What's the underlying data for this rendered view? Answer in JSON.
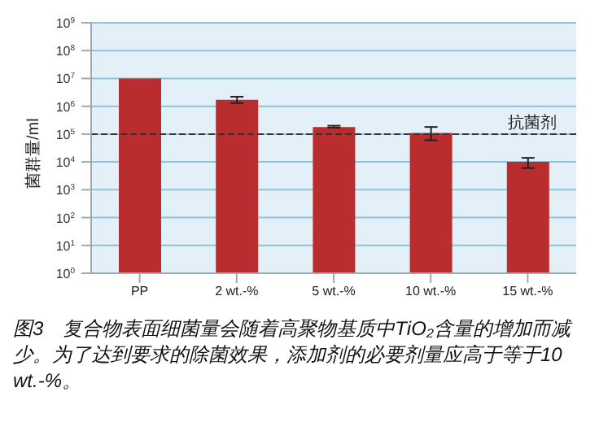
{
  "chart_data": {
    "type": "bar",
    "ylabel": "菌群量/ml",
    "categories": [
      "PP",
      "2 wt.-%",
      "5 wt.-%",
      "10 wt.-%",
      "15 wt.-%"
    ],
    "values": [
      10000000,
      1700000,
      180000,
      110000,
      10000
    ],
    "errors": [
      null,
      [
        1300000,
        2200000
      ],
      [
        170000,
        200000
      ],
      [
        60000,
        180000
      ],
      [
        6000,
        14000
      ]
    ],
    "color": "#b92d2f",
    "log": true,
    "ylim": [
      1,
      1000000000
    ],
    "yticks": [
      {
        "value": 1,
        "label": "10$^{0}$"
      },
      {
        "value": 10,
        "label": "10$^{1}$"
      },
      {
        "value": 100,
        "label": "10$^{2}$"
      },
      {
        "value": 1000,
        "label": "10$^{3}$"
      },
      {
        "value": 10000,
        "label": "10$^{4}$"
      },
      {
        "value": 100000,
        "label": "10$^{5}$"
      },
      {
        "value": 1000000,
        "label": "10$^{6}$"
      },
      {
        "value": 10000000,
        "label": "10$^{7}$"
      },
      {
        "value": 100000000,
        "label": "10$^{8}$"
      },
      {
        "value": 1000000000,
        "label": "10$^{9}$"
      }
    ],
    "grid": "y",
    "ref_lines": [
      {
        "axis": "y",
        "value": 100000,
        "label": "抗菌剂",
        "color": "#333333",
        "line_style": "dashed"
      }
    ],
    "annotations": [
      "图3　复合物表面细菌量会随着高聚物基质中TiO₂含量的增加而减少。为了达到要求的除菌效果，添加剂的必要剂量应高于等于10 wt.-%。"
    ]
  }
}
